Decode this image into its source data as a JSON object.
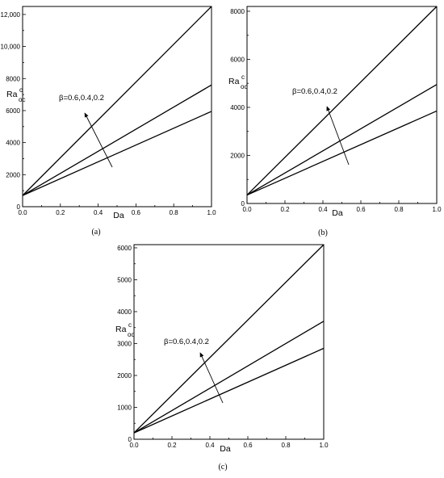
{
  "chart_data": [
    {
      "type": "line",
      "caption": "(a)",
      "xlabel": "Da",
      "ylabel_main": "Ra",
      "ylabel_sup": "c",
      "ylabel_sub": "oc",
      "annotation": "β=0.6,0.4,0.2",
      "xlim": [
        0,
        1
      ],
      "ylim": [
        0,
        12500
      ],
      "xticks": [
        0.0,
        0.2,
        0.4,
        0.6,
        0.8,
        1.0
      ],
      "xtick_labels": [
        "0.0",
        "0.2",
        "0.4",
        "0.6",
        "0.8",
        "1.0"
      ],
      "yticks": [
        0,
        2000,
        4000,
        6000,
        8000,
        10000,
        12000
      ],
      "ytick_labels": [
        "0",
        "2000",
        "4000",
        "6000",
        "8000",
        "10,000",
        "12,000"
      ],
      "series": [
        {
          "x": [
            0,
            1
          ],
          "y": [
            700,
            12500
          ]
        },
        {
          "x": [
            0,
            1
          ],
          "y": [
            700,
            7600
          ]
        },
        {
          "x": [
            0,
            1
          ],
          "y": [
            700,
            5950
          ]
        }
      ]
    },
    {
      "type": "line",
      "caption": "(b)",
      "xlabel": "Da",
      "ylabel_main": "Ra",
      "ylabel_sup": "c",
      "ylabel_sub": "oc",
      "annotation": "β=0.6,0.4,0.2",
      "xlim": [
        0,
        1
      ],
      "ylim": [
        0,
        8200
      ],
      "xticks": [
        0.0,
        0.2,
        0.4,
        0.6,
        0.8,
        1.0
      ],
      "xtick_labels": [
        "0.0",
        "0.2",
        "0.4",
        "0.6",
        "0.8",
        "1.0"
      ],
      "yticks": [
        0,
        2000,
        4000,
        6000,
        8000
      ],
      "ytick_labels": [
        "0",
        "2000",
        "4000",
        "6000",
        "8000"
      ],
      "series": [
        {
          "x": [
            0,
            1
          ],
          "y": [
            350,
            8200
          ]
        },
        {
          "x": [
            0,
            1
          ],
          "y": [
            350,
            4950
          ]
        },
        {
          "x": [
            0,
            1
          ],
          "y": [
            350,
            3850
          ]
        }
      ]
    },
    {
      "type": "line",
      "caption": "(c)",
      "xlabel": "Da",
      "ylabel_main": "Ra",
      "ylabel_sup": "c",
      "ylabel_sub": "oc",
      "annotation": "β=0.6,0.4,0.2",
      "xlim": [
        0,
        1
      ],
      "ylim": [
        0,
        6100
      ],
      "xticks": [
        0.0,
        0.2,
        0.4,
        0.6,
        0.8,
        1.0
      ],
      "xtick_labels": [
        "0.0",
        "0.2",
        "0.4",
        "0.6",
        "0.8",
        "1.0"
      ],
      "yticks": [
        0,
        1000,
        2000,
        3000,
        4000,
        5000,
        6000
      ],
      "ytick_labels": [
        "0",
        "1000",
        "2000",
        "3000",
        "4000",
        "5000",
        "6000"
      ],
      "series": [
        {
          "x": [
            0,
            1
          ],
          "y": [
            200,
            6100
          ]
        },
        {
          "x": [
            0,
            1
          ],
          "y": [
            200,
            3700
          ]
        },
        {
          "x": [
            0,
            1
          ],
          "y": [
            200,
            2850
          ]
        }
      ]
    }
  ]
}
